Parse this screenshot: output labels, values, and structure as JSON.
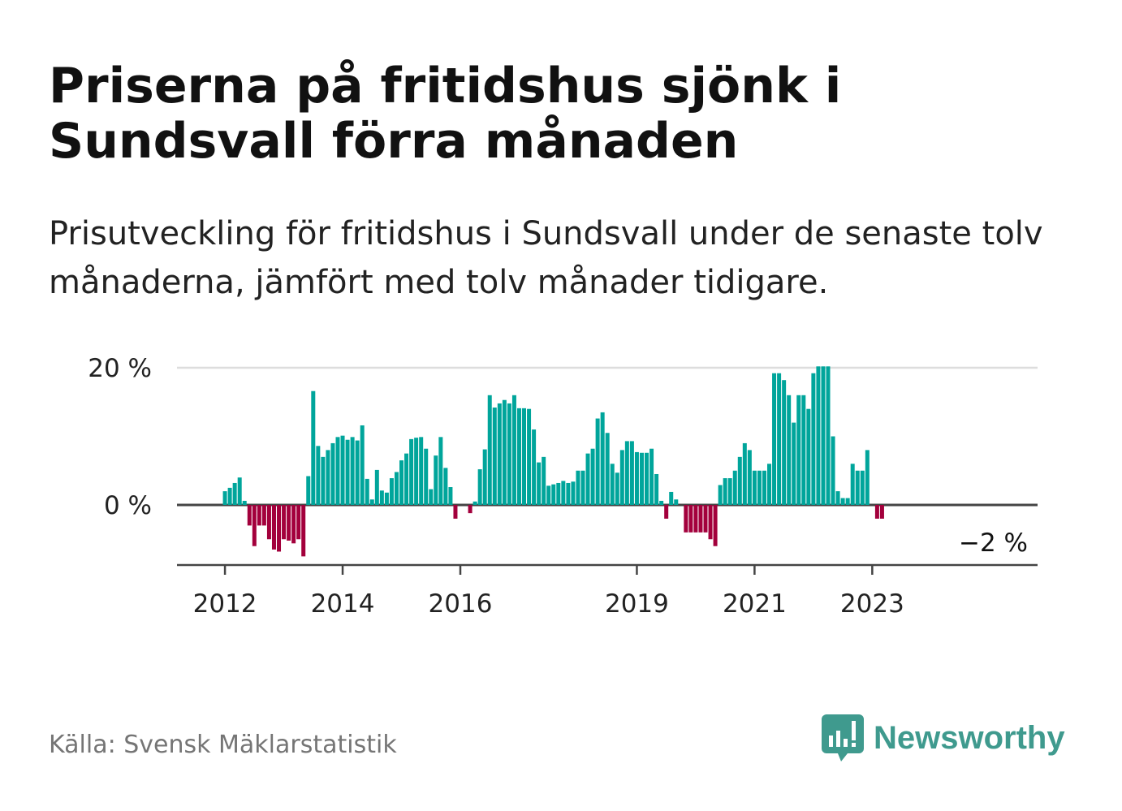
{
  "title": "Priserna på fritidshus sjönk i Sundsvall förra månaden",
  "subtitle": "Prisutveckling för fritidshus i Sundsvall under de senaste tolv månaderna, jämfört med tolv månader tidigare.",
  "source": "Källa: Svensk Mäklarstatistik",
  "brand": "Newsworthy",
  "colors": {
    "positive": "#00a59b",
    "negative": "#a3003c",
    "gridline": "#dddddd",
    "axis": "#444444",
    "logo": "#3f9a8e"
  },
  "chart_data": {
    "type": "bar",
    "title": "",
    "xlabel": "",
    "ylabel": "",
    "ylim": [
      -8.5,
      20
    ],
    "yticks": [
      {
        "value": 0,
        "label": "0 %"
      },
      {
        "value": 20,
        "label": "20 %"
      }
    ],
    "x_tick_labels": [
      "2012",
      "2014",
      "2016",
      "2019",
      "2021",
      "2023"
    ],
    "x_tick_values": [
      "2012-01",
      "2014-01",
      "2016-01",
      "2019-01",
      "2021-01",
      "2023-01"
    ],
    "grid": true,
    "last_value_label": "−2 %",
    "start_month": "2011-11",
    "series": [
      {
        "values": [
          0,
          0,
          2,
          2.5,
          3.2,
          4,
          0.6,
          -3,
          -6,
          -3,
          -3,
          -5,
          -6.5,
          -6.8,
          -5,
          -5.2,
          -5.6,
          -5,
          -7.5,
          4.2,
          16.6,
          8.6,
          7,
          8,
          9,
          9.9,
          10.1,
          9.5,
          9.9,
          9.4,
          11.6,
          3.8,
          0.8,
          5.1,
          2.1,
          1.8,
          3.9,
          4.8,
          6.5,
          7.5,
          9.6,
          9.8,
          9.9,
          8.2,
          2.3,
          7.2,
          9.9,
          5.4,
          2.6,
          -2,
          0,
          0,
          -1.2,
          0.5,
          5.2,
          8.1,
          16,
          14.2,
          14.8,
          15.3,
          14.8,
          16,
          14.1,
          14.1,
          14,
          11,
          6.2,
          7,
          2.8,
          3,
          3.2,
          3.5,
          3.2,
          3.4,
          5,
          5,
          7.5,
          8.2,
          12.6,
          13.5,
          10.5,
          6,
          4.7,
          8,
          9.3,
          9.3,
          7.7,
          7.6,
          7.6,
          8.2,
          4.5,
          0.6,
          -2,
          1.9,
          0.8,
          0,
          -4,
          -4,
          -4,
          -4,
          -4,
          -5,
          -6,
          2.9,
          3.9,
          3.9,
          5,
          7,
          9,
          8,
          5,
          5,
          5,
          6,
          19.2,
          19.2,
          18.2,
          16,
          12,
          16,
          16,
          14,
          19.2,
          20.2,
          20.2,
          20.2,
          10,
          2,
          1,
          1,
          6,
          5,
          5,
          8,
          0,
          -2,
          -2
        ]
      }
    ]
  }
}
